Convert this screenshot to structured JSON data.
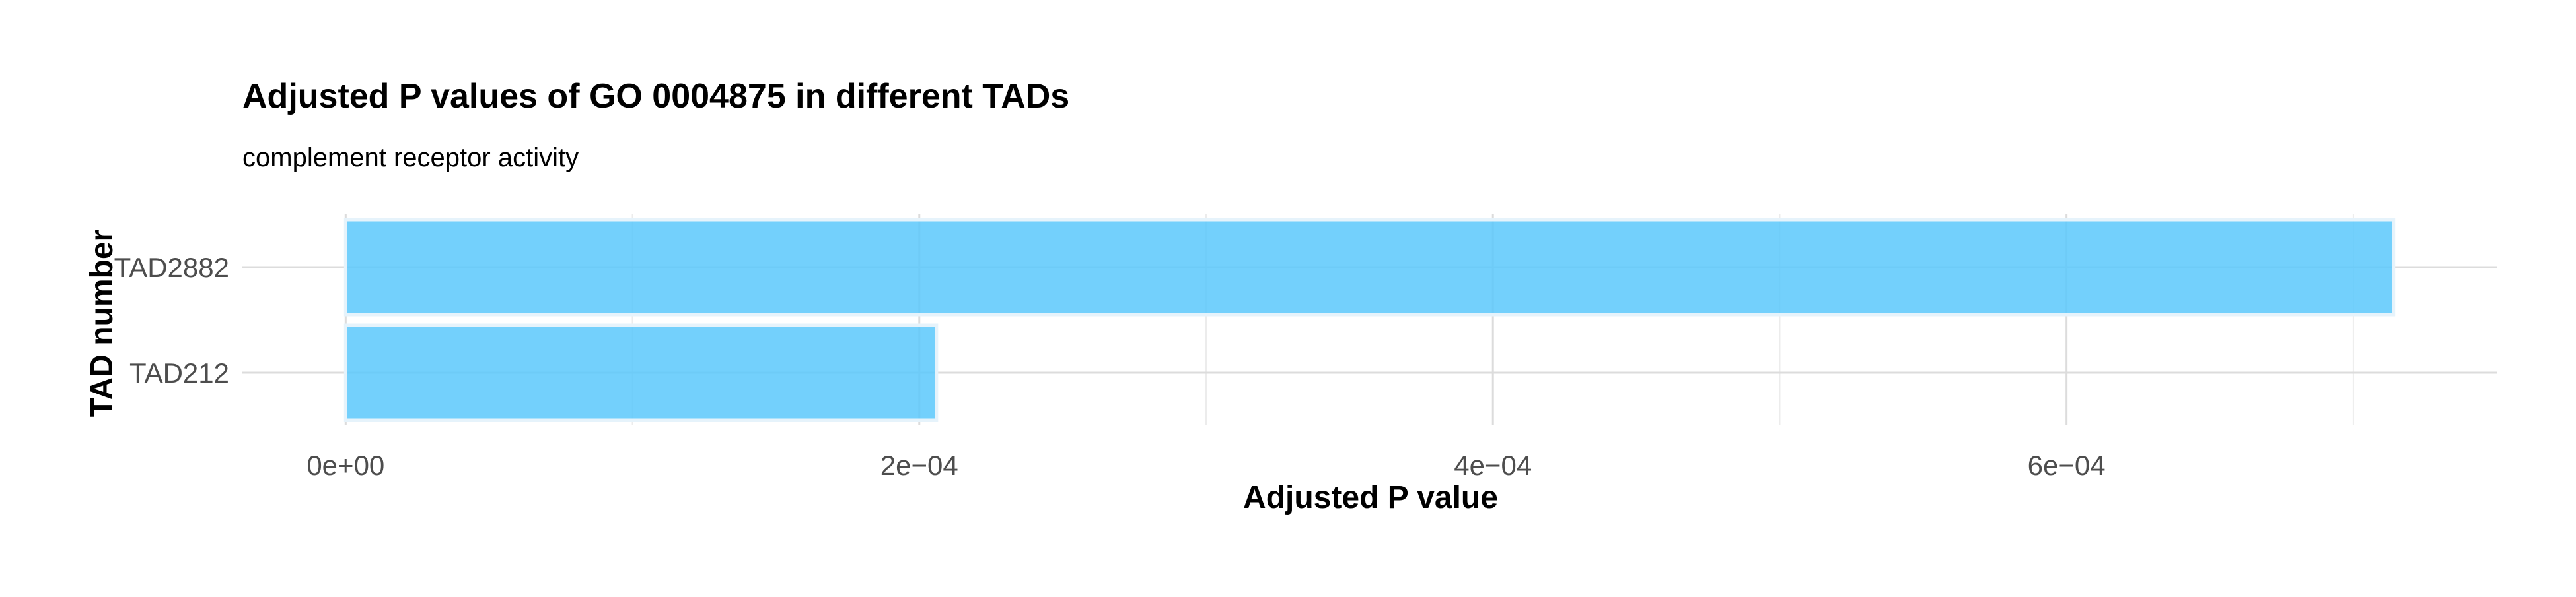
{
  "chart_data": {
    "type": "bar",
    "orientation": "horizontal",
    "title": "Adjusted P values of GO 0004875 in different TADs",
    "subtitle": "complement receptor activity",
    "xlabel": "Adjusted P value",
    "ylabel": "TAD number",
    "categories": [
      "TAD2882",
      "TAD212"
    ],
    "values": [
      0.000714,
      0.000206
    ],
    "xlim": [
      -3.6e-05,
      0.00075
    ],
    "x_ticks": [
      0,
      0.0002,
      0.0004,
      0.0006
    ],
    "x_tick_labels": [
      "0e+00",
      "2e−04",
      "4e−04",
      "6e−04"
    ],
    "x_minor_ticks": [
      0.0001,
      0.0003,
      0.0005,
      0.0007
    ],
    "grid": true,
    "legend": "none",
    "colors": {
      "bar_fill": "#5bc8fb",
      "bar_outline": "#e6f3fb",
      "grid_major": "#dcdcdc",
      "grid_minor": "#ececec"
    }
  }
}
